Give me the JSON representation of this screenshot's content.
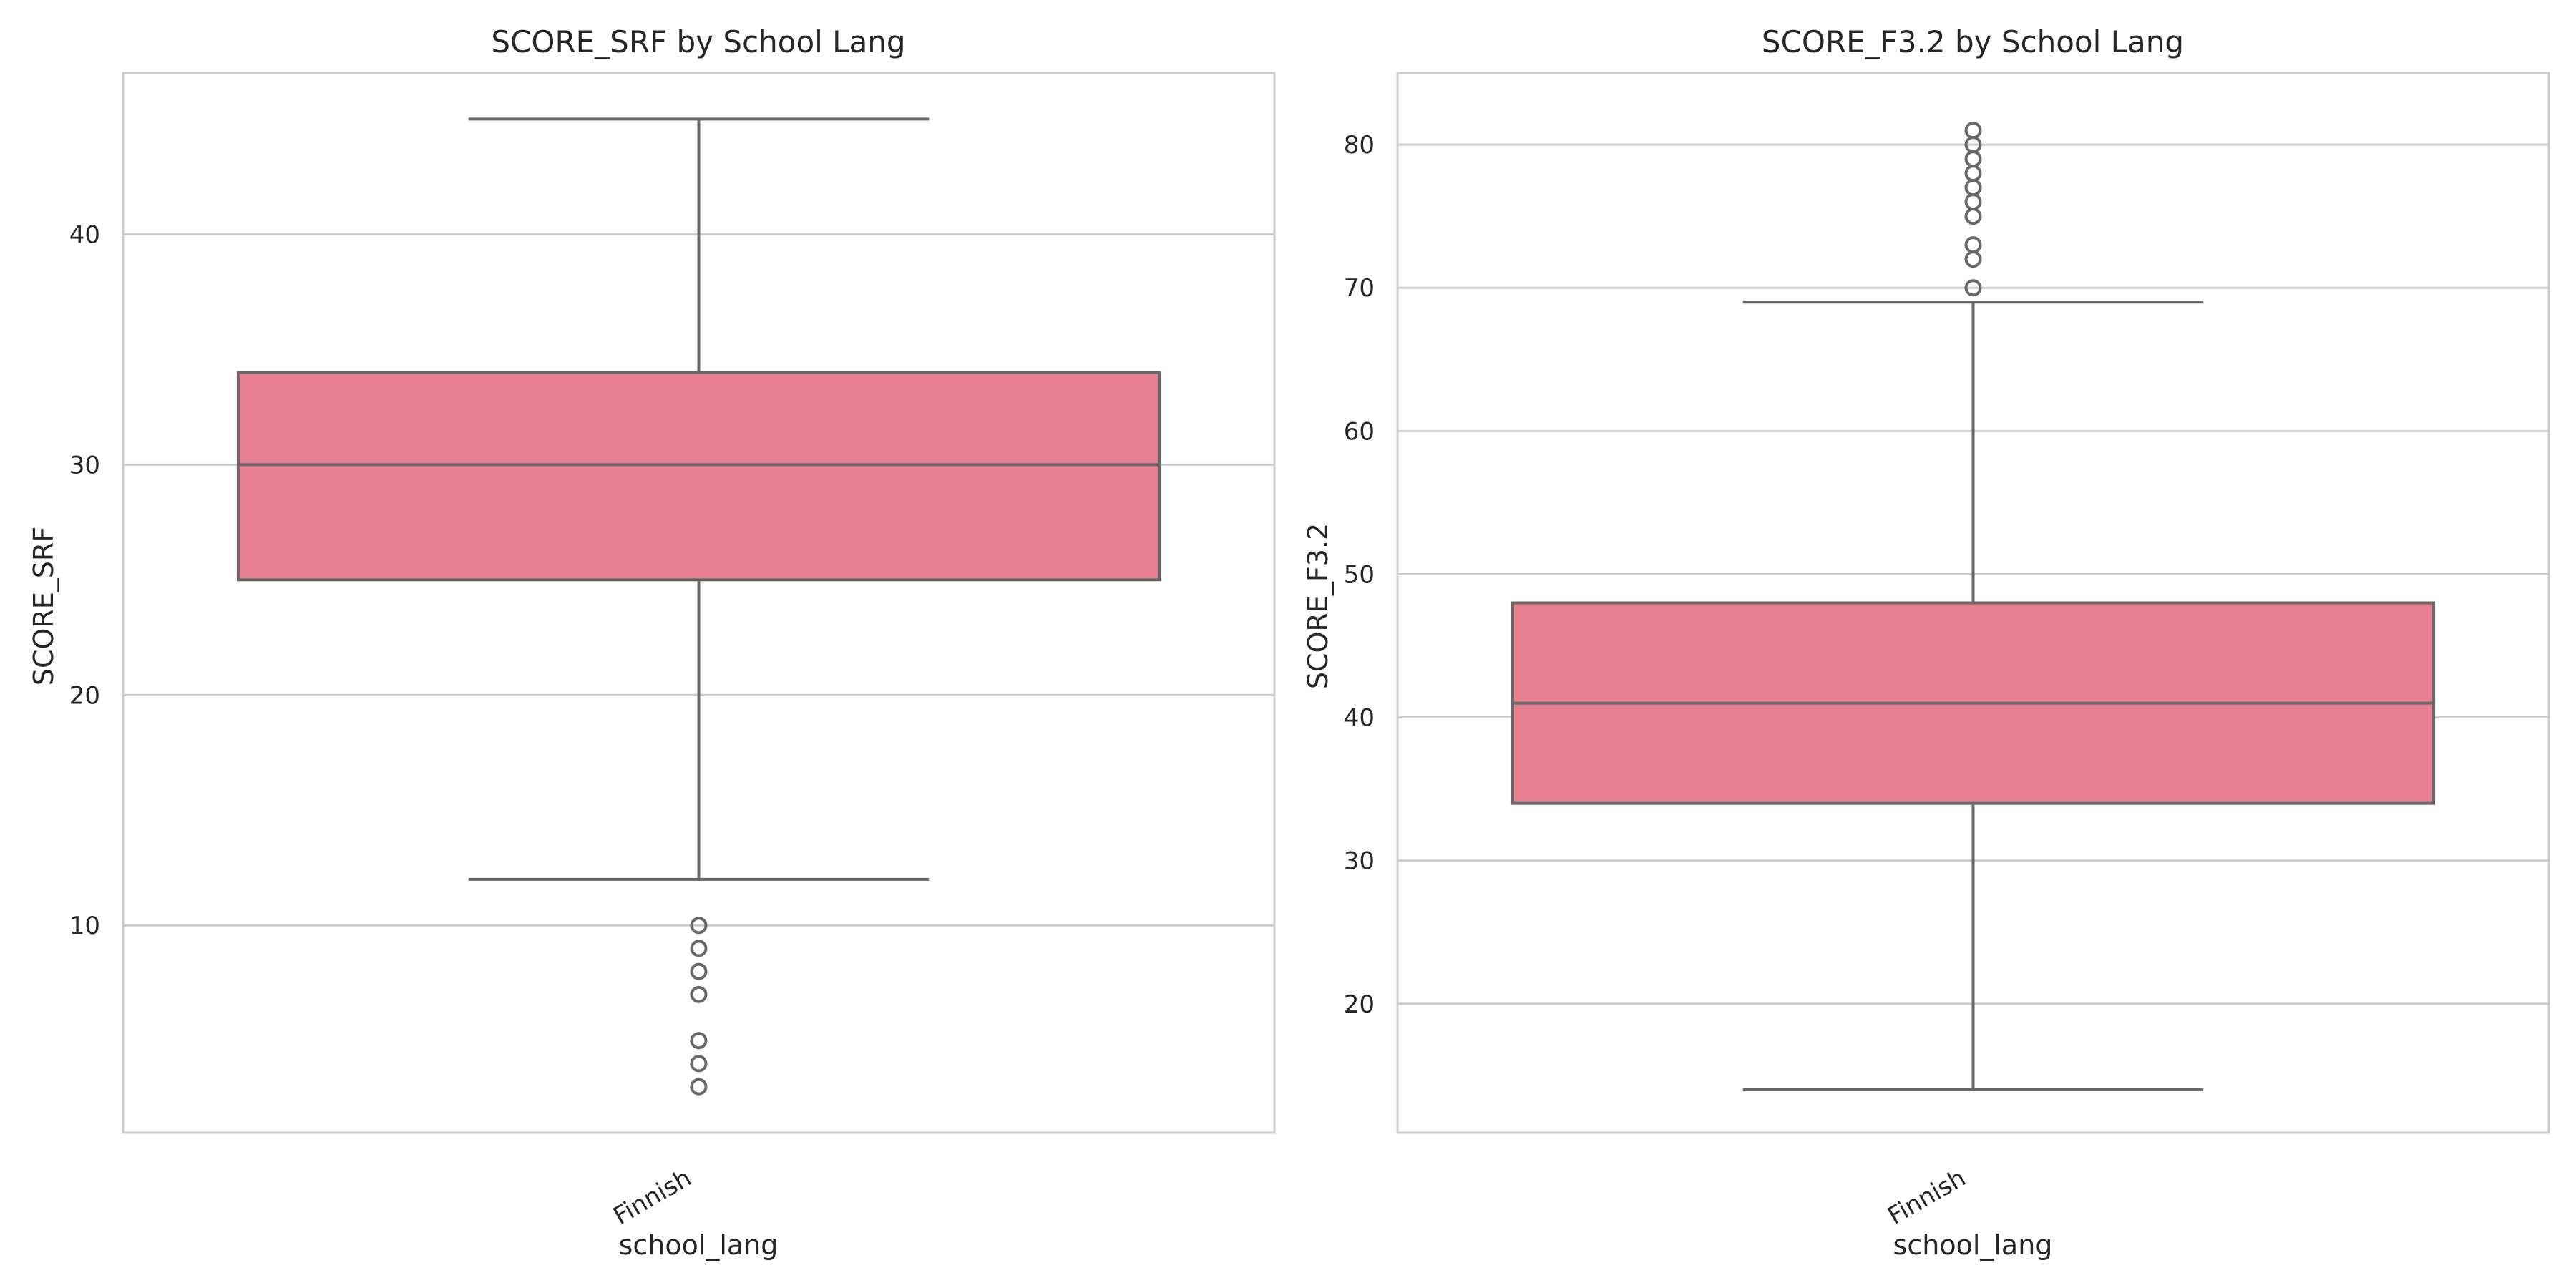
{
  "chart_data": [
    {
      "type": "box",
      "title": "SCORE_SRF by School Lang",
      "xlabel": "school_lang",
      "ylabel": "SCORE_SRF",
      "categories": [
        "Finnish"
      ],
      "ylim": [
        1,
        47
      ],
      "yticks": [
        10,
        20,
        30,
        40
      ],
      "grid": true,
      "legend": "none",
      "box_color": "#e8808f",
      "line_color": "#686868",
      "boxes": [
        {
          "category": "Finnish",
          "whisker_low": 12,
          "q1": 25,
          "median": 30,
          "q3": 34,
          "whisker_high": 45,
          "outliers": [
            10,
            9,
            8,
            7,
            5,
            4,
            3
          ]
        }
      ]
    },
    {
      "type": "box",
      "title": "SCORE_F3.2 by School Lang",
      "xlabel": "school_lang",
      "ylabel": "SCORE_F3.2",
      "categories": [
        "Finnish"
      ],
      "ylim": [
        11,
        85
      ],
      "yticks": [
        20,
        30,
        40,
        50,
        60,
        70,
        80
      ],
      "grid": true,
      "legend": "none",
      "box_color": "#e8808f",
      "line_color": "#686868",
      "boxes": [
        {
          "category": "Finnish",
          "whisker_low": 14,
          "q1": 34,
          "median": 41,
          "q3": 48,
          "whisker_high": 69,
          "outliers": [
            70,
            72,
            73,
            75,
            76,
            77,
            78,
            79,
            80,
            81
          ]
        }
      ]
    }
  ]
}
